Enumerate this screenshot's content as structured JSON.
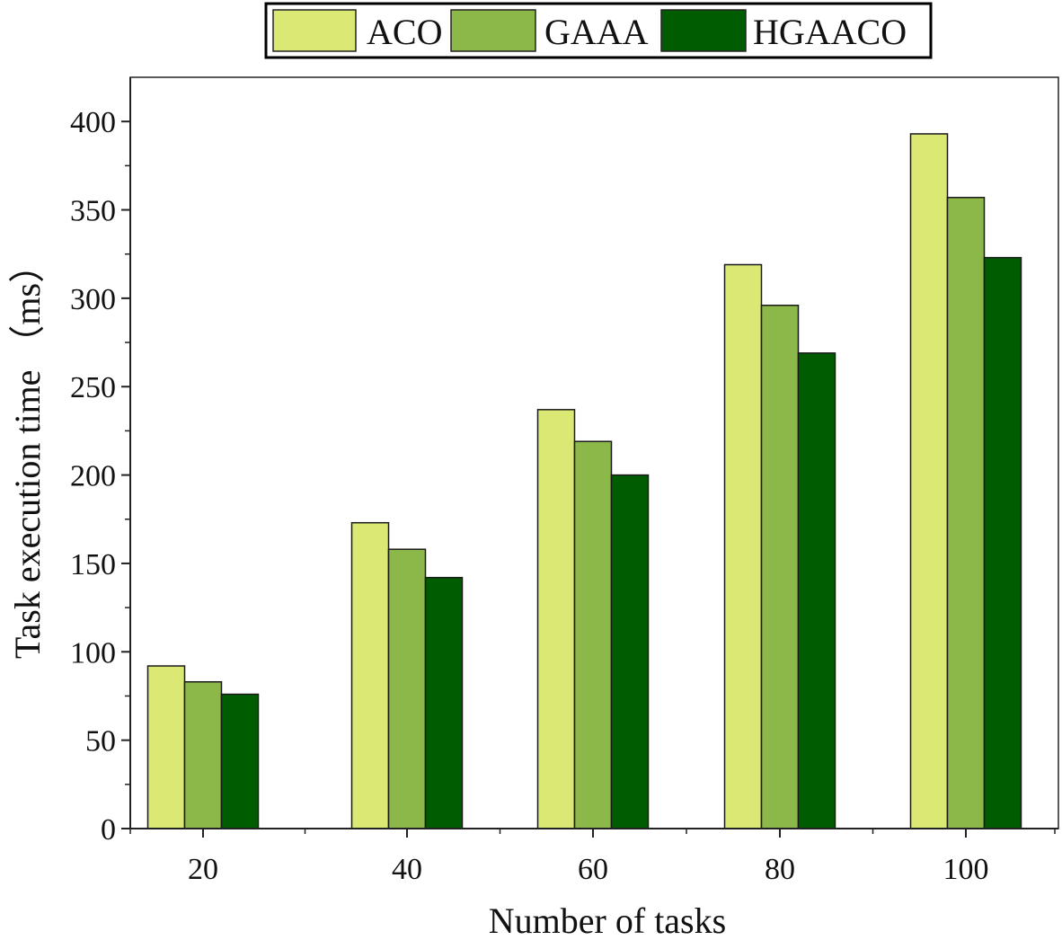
{
  "chart_data": {
    "type": "bar",
    "title": "",
    "xlabel": "Number of tasks",
    "ylabel": "Task execution time （ms）",
    "categories": [
      "20",
      "40",
      "60",
      "80",
      "100"
    ],
    "ylim": [
      0,
      425
    ],
    "yticks": [
      0,
      50,
      100,
      150,
      200,
      250,
      300,
      350,
      400
    ],
    "grid": false,
    "legend_position": "top-center",
    "series": [
      {
        "name": "ACO",
        "color": "#dbe874",
        "values": [
          92,
          173,
          237,
          319,
          393
        ]
      },
      {
        "name": "GAAA",
        "color": "#8cb84a",
        "values": [
          83,
          158,
          219,
          296,
          357
        ]
      },
      {
        "name": "HGAACO",
        "color": "#005c00",
        "values": [
          76,
          142,
          200,
          269,
          323
        ]
      }
    ]
  }
}
